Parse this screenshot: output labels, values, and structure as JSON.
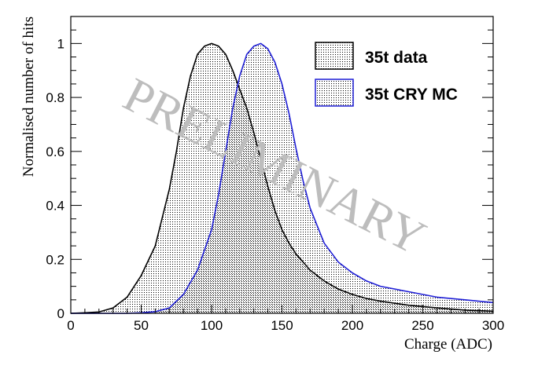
{
  "chart_data": {
    "type": "area",
    "xlabel": "Charge (ADC)",
    "ylabel": "Normalised number of hits",
    "xlim": [
      0,
      300
    ],
    "ylim": [
      0,
      1.1
    ],
    "x_ticks": [
      "0",
      "50",
      "100",
      "150",
      "200",
      "250",
      "300"
    ],
    "y_ticks": [
      "0",
      "0.2",
      "0.4",
      "0.6",
      "0.8",
      "1"
    ],
    "grid": false,
    "legend_position": "top-right",
    "watermark": "PRELIMINARY",
    "series": [
      {
        "name": "35t data",
        "color": "#000000",
        "fill": "dotted",
        "x": [
          0,
          10,
          20,
          30,
          40,
          50,
          60,
          70,
          75,
          80,
          85,
          90,
          95,
          100,
          105,
          110,
          115,
          120,
          125,
          130,
          135,
          140,
          145,
          150,
          155,
          160,
          170,
          180,
          190,
          200,
          210,
          220,
          240,
          260,
          280,
          300
        ],
        "y": [
          0,
          0.002,
          0.005,
          0.02,
          0.06,
          0.14,
          0.25,
          0.46,
          0.6,
          0.76,
          0.88,
          0.96,
          0.99,
          1.0,
          0.99,
          0.96,
          0.9,
          0.83,
          0.76,
          0.67,
          0.57,
          0.47,
          0.38,
          0.31,
          0.26,
          0.22,
          0.16,
          0.12,
          0.09,
          0.07,
          0.055,
          0.045,
          0.03,
          0.02,
          0.012,
          0.008
        ]
      },
      {
        "name": "35t CRY MC",
        "color": "#1f1fd6",
        "fill": "dotted",
        "x": [
          0,
          40,
          50,
          60,
          70,
          80,
          90,
          100,
          105,
          110,
          115,
          120,
          125,
          130,
          135,
          140,
          145,
          150,
          155,
          160,
          165,
          170,
          180,
          190,
          200,
          210,
          220,
          240,
          260,
          280,
          300
        ],
        "y": [
          0,
          0.0,
          0.002,
          0.006,
          0.02,
          0.07,
          0.16,
          0.31,
          0.44,
          0.6,
          0.76,
          0.88,
          0.96,
          0.99,
          1.0,
          0.98,
          0.93,
          0.85,
          0.74,
          0.61,
          0.49,
          0.39,
          0.26,
          0.19,
          0.15,
          0.12,
          0.1,
          0.08,
          0.06,
          0.05,
          0.04
        ]
      }
    ]
  }
}
